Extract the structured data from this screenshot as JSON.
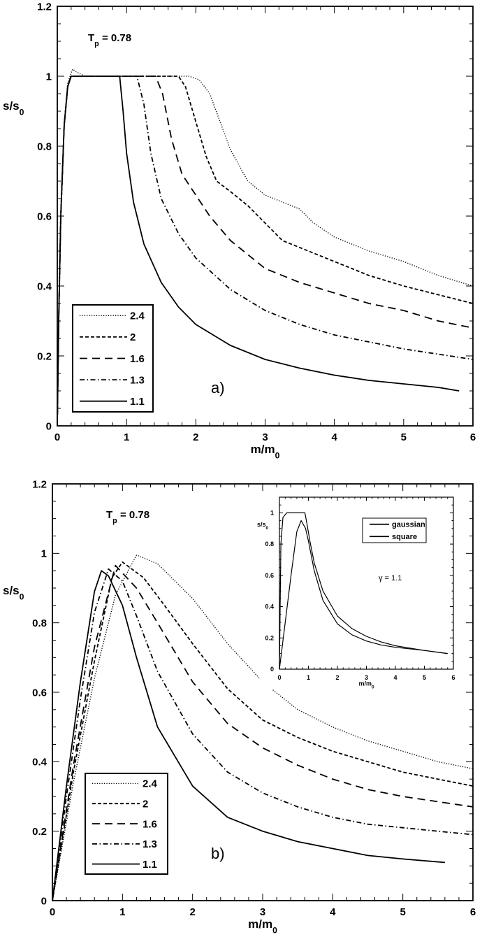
{
  "chart_data": [
    {
      "type": "line",
      "panel_label": "a)",
      "annotation": {
        "main": "T",
        "sub": "p",
        "rest": " = 0.78"
      },
      "xlabel": {
        "main": "m/m",
        "sub": "0"
      },
      "ylabel": {
        "main": "s/s",
        "sub": "0"
      },
      "xlim": [
        0,
        6
      ],
      "ylim": [
        0,
        1.2
      ],
      "xticks": [
        "0",
        "1",
        "2",
        "3",
        "4",
        "5",
        "6"
      ],
      "yticks": [
        "0",
        "0.2",
        "0.4",
        "0.6",
        "0.8",
        "1",
        "1.2"
      ],
      "grid": false,
      "legend_position": "bottom-left",
      "series": [
        {
          "name": "2.4",
          "style": "dotted",
          "points": [
            [
              0,
              0
            ],
            [
              0.02,
              0.3
            ],
            [
              0.05,
              0.6
            ],
            [
              0.1,
              0.86
            ],
            [
              0.15,
              0.98
            ],
            [
              0.22,
              1.02
            ],
            [
              0.3,
              1.01
            ],
            [
              0.4,
              1
            ],
            [
              1.9,
              1
            ],
            [
              2.05,
              0.99
            ],
            [
              2.2,
              0.95
            ],
            [
              2.35,
              0.87
            ],
            [
              2.5,
              0.79
            ],
            [
              2.75,
              0.7
            ],
            [
              3,
              0.66
            ],
            [
              3.5,
              0.62
            ],
            [
              3.7,
              0.58
            ],
            [
              4,
              0.54
            ],
            [
              4.5,
              0.5
            ],
            [
              5,
              0.47
            ],
            [
              5.5,
              0.43
            ],
            [
              6,
              0.4
            ]
          ]
        },
        {
          "name": "2",
          "style": "short-dash",
          "points": [
            [
              0,
              0
            ],
            [
              0.02,
              0.3
            ],
            [
              0.05,
              0.6
            ],
            [
              0.1,
              0.86
            ],
            [
              0.15,
              0.97
            ],
            [
              0.2,
              1
            ],
            [
              1.75,
              1
            ],
            [
              1.85,
              0.97
            ],
            [
              2,
              0.87
            ],
            [
              2.15,
              0.77
            ],
            [
              2.3,
              0.7
            ],
            [
              2.5,
              0.67
            ],
            [
              2.75,
              0.63
            ],
            [
              3,
              0.58
            ],
            [
              3.25,
              0.53
            ],
            [
              3.5,
              0.51
            ],
            [
              4,
              0.47
            ],
            [
              4.5,
              0.43
            ],
            [
              5,
              0.4
            ],
            [
              5.5,
              0.375
            ],
            [
              6,
              0.35
            ]
          ]
        },
        {
          "name": "1.6",
          "style": "long-dash",
          "points": [
            [
              0,
              0
            ],
            [
              0.02,
              0.3
            ],
            [
              0.05,
              0.6
            ],
            [
              0.1,
              0.86
            ],
            [
              0.15,
              0.97
            ],
            [
              0.2,
              1
            ],
            [
              1.42,
              1
            ],
            [
              1.52,
              0.95
            ],
            [
              1.65,
              0.82
            ],
            [
              1.8,
              0.72
            ],
            [
              2,
              0.66
            ],
            [
              2.2,
              0.6
            ],
            [
              2.5,
              0.53
            ],
            [
              2.75,
              0.49
            ],
            [
              3,
              0.45
            ],
            [
              3.5,
              0.41
            ],
            [
              4,
              0.38
            ],
            [
              4.5,
              0.35
            ],
            [
              5,
              0.33
            ],
            [
              5.5,
              0.3
            ],
            [
              6,
              0.28
            ]
          ]
        },
        {
          "name": "1.3",
          "style": "dash-dot",
          "points": [
            [
              0,
              0
            ],
            [
              0.02,
              0.3
            ],
            [
              0.05,
              0.6
            ],
            [
              0.1,
              0.86
            ],
            [
              0.15,
              0.97
            ],
            [
              0.2,
              1
            ],
            [
              1.15,
              1
            ],
            [
              1.25,
              0.92
            ],
            [
              1.35,
              0.78
            ],
            [
              1.5,
              0.65
            ],
            [
              1.75,
              0.55
            ],
            [
              2,
              0.48
            ],
            [
              2.5,
              0.39
            ],
            [
              3,
              0.33
            ],
            [
              3.5,
              0.29
            ],
            [
              4,
              0.26
            ],
            [
              4.5,
              0.24
            ],
            [
              5,
              0.22
            ],
            [
              5.5,
              0.205
            ],
            [
              6,
              0.19
            ]
          ]
        },
        {
          "name": "1.1",
          "style": "solid",
          "points": [
            [
              0,
              0
            ],
            [
              0.02,
              0.3
            ],
            [
              0.05,
              0.6
            ],
            [
              0.1,
              0.86
            ],
            [
              0.15,
              0.97
            ],
            [
              0.2,
              1
            ],
            [
              0.9,
              1
            ],
            [
              0.95,
              0.9
            ],
            [
              1.0,
              0.78
            ],
            [
              1.1,
              0.64
            ],
            [
              1.25,
              0.52
            ],
            [
              1.5,
              0.41
            ],
            [
              1.75,
              0.34
            ],
            [
              2,
              0.29
            ],
            [
              2.5,
              0.23
            ],
            [
              3,
              0.19
            ],
            [
              3.5,
              0.165
            ],
            [
              4,
              0.145
            ],
            [
              4.5,
              0.13
            ],
            [
              5,
              0.12
            ],
            [
              5.5,
              0.11
            ],
            [
              5.8,
              0.1
            ]
          ]
        }
      ]
    },
    {
      "type": "line",
      "panel_label": "b)",
      "annotation": {
        "main": "T",
        "sub": "p",
        "rest": " = 0.78"
      },
      "xlabel": {
        "main": "m/m",
        "sub": "0"
      },
      "ylabel": {
        "main": "s/s",
        "sub": "0"
      },
      "xlim": [
        0,
        6
      ],
      "ylim": [
        0,
        1.2
      ],
      "xticks": [
        "0",
        "1",
        "2",
        "3",
        "4",
        "5",
        "6"
      ],
      "yticks": [
        "0",
        "0.2",
        "0.4",
        "0.6",
        "0.8",
        "1",
        "1.2"
      ],
      "grid": false,
      "legend_position": "bottom-left",
      "series": [
        {
          "name": "2.4",
          "style": "dotted",
          "points": [
            [
              0,
              0
            ],
            [
              0.3,
              0.34
            ],
            [
              0.6,
              0.64
            ],
            [
              0.9,
              0.88
            ],
            [
              1.2,
              0.995
            ],
            [
              1.5,
              0.97
            ],
            [
              2,
              0.87
            ],
            [
              2.5,
              0.74
            ],
            [
              3,
              0.63
            ],
            [
              3.5,
              0.55
            ],
            [
              4,
              0.5
            ],
            [
              4.5,
              0.46
            ],
            [
              5,
              0.43
            ],
            [
              5.5,
              0.4
            ],
            [
              6,
              0.38
            ]
          ]
        },
        {
          "name": "2",
          "style": "short-dash",
          "points": [
            [
              0,
              0
            ],
            [
              0.3,
              0.37
            ],
            [
              0.6,
              0.69
            ],
            [
              0.85,
              0.93
            ],
            [
              1.0,
              0.975
            ],
            [
              1.3,
              0.93
            ],
            [
              1.6,
              0.85
            ],
            [
              2,
              0.74
            ],
            [
              2.5,
              0.61
            ],
            [
              3,
              0.52
            ],
            [
              3.5,
              0.47
            ],
            [
              4,
              0.43
            ],
            [
              4.5,
              0.4
            ],
            [
              5,
              0.37
            ],
            [
              5.5,
              0.35
            ],
            [
              6,
              0.33
            ]
          ]
        },
        {
          "name": "1.6",
          "style": "long-dash",
          "points": [
            [
              0,
              0
            ],
            [
              0.3,
              0.39
            ],
            [
              0.6,
              0.73
            ],
            [
              0.9,
              0.965
            ],
            [
              1.2,
              0.9
            ],
            [
              1.5,
              0.8
            ],
            [
              2,
              0.63
            ],
            [
              2.5,
              0.51
            ],
            [
              3,
              0.44
            ],
            [
              3.5,
              0.39
            ],
            [
              4,
              0.35
            ],
            [
              4.5,
              0.32
            ],
            [
              5,
              0.3
            ],
            [
              5.5,
              0.285
            ],
            [
              6,
              0.27
            ]
          ]
        },
        {
          "name": "1.3",
          "style": "dash-dot",
          "points": [
            [
              0,
              0
            ],
            [
              0.2,
              0.3
            ],
            [
              0.4,
              0.58
            ],
            [
              0.6,
              0.83
            ],
            [
              0.8,
              0.955
            ],
            [
              1,
              0.92
            ],
            [
              1.2,
              0.82
            ],
            [
              1.5,
              0.66
            ],
            [
              2,
              0.48
            ],
            [
              2.5,
              0.37
            ],
            [
              3,
              0.31
            ],
            [
              3.5,
              0.27
            ],
            [
              4,
              0.24
            ],
            [
              4.5,
              0.22
            ],
            [
              5,
              0.21
            ],
            [
              5.5,
              0.2
            ],
            [
              6,
              0.19
            ]
          ]
        },
        {
          "name": "1.1",
          "style": "solid",
          "points": [
            [
              0,
              0
            ],
            [
              0.2,
              0.33
            ],
            [
              0.4,
              0.63
            ],
            [
              0.6,
              0.89
            ],
            [
              0.7,
              0.95
            ],
            [
              0.8,
              0.935
            ],
            [
              1,
              0.85
            ],
            [
              1.2,
              0.7
            ],
            [
              1.5,
              0.5
            ],
            [
              2,
              0.33
            ],
            [
              2.5,
              0.24
            ],
            [
              3,
              0.2
            ],
            [
              3.5,
              0.17
            ],
            [
              4,
              0.15
            ],
            [
              4.5,
              0.13
            ],
            [
              5,
              0.12
            ],
            [
              5.6,
              0.11
            ]
          ]
        }
      ],
      "inset": {
        "type": "line",
        "xlabel": {
          "main": "m/m",
          "sub": "0"
        },
        "ylabel": {
          "main": "s/s",
          "sub": "0"
        },
        "xlim": [
          0,
          6
        ],
        "ylim": [
          0,
          1.1
        ],
        "xticks": [
          "0",
          "1",
          "2",
          "3",
          "4",
          "5",
          "6"
        ],
        "yticks": [
          "0",
          "0.2",
          "0.4",
          "0.6",
          "0.8",
          "1"
        ],
        "annotation": "γ = 1.1",
        "legend_position": "top-right",
        "series": [
          {
            "name": "gaussian",
            "style": "solid",
            "points": [
              [
                0,
                0
              ],
              [
                0.2,
                0.3
              ],
              [
                0.4,
                0.6
              ],
              [
                0.6,
                0.88
              ],
              [
                0.75,
                0.95
              ],
              [
                0.9,
                0.9
              ],
              [
                1.0,
                0.82
              ],
              [
                1.2,
                0.63
              ],
              [
                1.5,
                0.44
              ],
              [
                2,
                0.29
              ],
              [
                2.5,
                0.22
              ],
              [
                3,
                0.18
              ],
              [
                3.5,
                0.155
              ],
              [
                4,
                0.14
              ],
              [
                5,
                0.12
              ],
              [
                5.8,
                0.1
              ]
            ]
          },
          {
            "name": "square",
            "style": "solid",
            "points": [
              [
                0,
                0
              ],
              [
                0.05,
                0.8
              ],
              [
                0.12,
                0.97
              ],
              [
                0.25,
                1
              ],
              [
                0.88,
                1
              ],
              [
                0.95,
                0.93
              ],
              [
                1.05,
                0.82
              ],
              [
                1.2,
                0.68
              ],
              [
                1.5,
                0.5
              ],
              [
                2,
                0.34
              ],
              [
                2.5,
                0.26
              ],
              [
                3,
                0.21
              ],
              [
                3.5,
                0.175
              ],
              [
                4,
                0.15
              ],
              [
                5,
                0.12
              ],
              [
                5.8,
                0.1
              ]
            ]
          }
        ]
      }
    }
  ]
}
